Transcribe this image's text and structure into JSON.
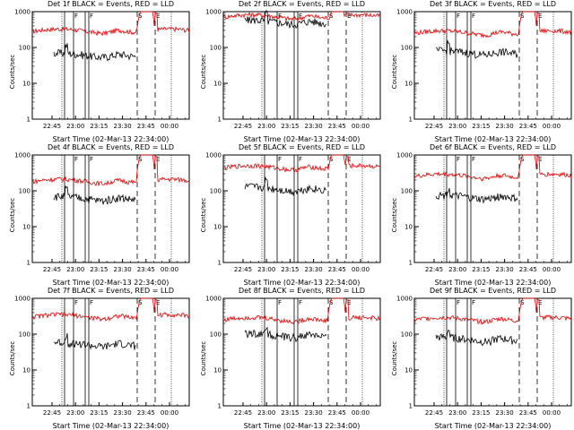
{
  "panels": [
    {
      "title": "Det 1f BLACK = Events, RED = LLD",
      "ylabel": "Counts/sec",
      "xlabel": "Start Time (02-Mar-13 22:34:00)"
    },
    {
      "title": "Det 2f BLACK = Events, RED = LLD",
      "ylabel": "Counts/sec",
      "xlabel": "Start Time (02-Mar-13 22:34:00)"
    },
    {
      "title": "Det 3f BLACK = Events, RED = LLD",
      "ylabel": "Counts/sec",
      "xlabel": "Start Time (02-Mar-13 22:34:00)"
    },
    {
      "title": "Det 4f BLACK = Events, RED = LLD",
      "ylabel": "Counts/sec",
      "xlabel": "Start Time (02-Mar-13 22:34:00)"
    },
    {
      "title": "Det 5f BLACK = Events, RED = LLD",
      "ylabel": "Counts/sec",
      "xlabel": "Start Time (02-Mar-13 22:34:00)"
    },
    {
      "title": "Det 6f BLACK = Events, RED = LLD",
      "ylabel": "Counts/sec",
      "xlabel": "Start Time (02-Mar-13 22:34:00)"
    },
    {
      "title": "Det 7f BLACK = Events, RED = LLD",
      "ylabel": "Counts/sec",
      "xlabel": "Start Time (02-Mar-13 22:34:00)"
    },
    {
      "title": "Det 8f BLACK = Events, RED = LLD",
      "ylabel": "Counts/sec",
      "xlabel": "Start Time (02-Mar-13 22:34:00)"
    },
    {
      "title": "Det 9f BLACK = Events, RED = LLD",
      "ylabel": "Counts/sec",
      "xlabel": "Start Time (02-Mar-13 22:34:00)"
    }
  ],
  "chart_data": {
    "type": "line",
    "x_axis": {
      "ticks": [
        "22:45",
        "23:00",
        "23:15",
        "23:30",
        "23:45",
        "00:00"
      ]
    },
    "y_axis": {
      "scale": "log",
      "ylim": [
        1,
        1000
      ],
      "ticks": [
        "1",
        "10",
        "100",
        "1000"
      ]
    },
    "series": [
      {
        "name": "BLACK = Events",
        "color": "#000000"
      },
      {
        "name": "RED = LLD",
        "color": "#e00000"
      }
    ],
    "markers": {
      "vertical_solid_labels": [
        "F",
        "F"
      ],
      "vertical_dashed_labels": [
        "S",
        "E"
      ]
    },
    "profiles": {
      "red_levels": [
        280,
        700,
        250,
        180,
        430,
        250,
        300,
        250,
        250
      ],
      "black_levels": [
        60,
        500,
        70,
        60,
        110,
        65,
        50,
        90,
        70
      ],
      "spike_peak": 1000
    }
  }
}
